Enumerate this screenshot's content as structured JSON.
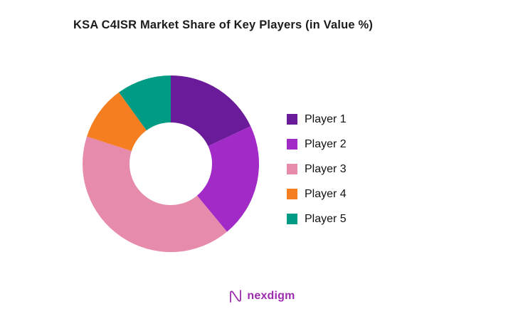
{
  "chart_data": {
    "type": "pie",
    "subtype": "donut",
    "title": "KSA C4ISR Market Share of Key Players (in Value %)",
    "categories": [
      "Player 1",
      "Player 2",
      "Player 3",
      "Player 4",
      "Player 5"
    ],
    "values": [
      18,
      21,
      41,
      10,
      10
    ],
    "colors": [
      "#6A1B9A",
      "#A22BC8",
      "#E78BAC",
      "#F57E20",
      "#009B85"
    ],
    "legend_position": "right",
    "start_angle": 0,
    "direction": "clockwise",
    "inner_radius_ratio": 0.47,
    "grid": "off"
  },
  "legend": {
    "items": [
      {
        "label": "Player 1",
        "color": "#6A1B9A"
      },
      {
        "label": "Player 2",
        "color": "#A22BC8"
      },
      {
        "label": "Player 3",
        "color": "#E78BAC"
      },
      {
        "label": "Player 4",
        "color": "#F57E20"
      },
      {
        "label": "Player 5",
        "color": "#009B85"
      }
    ]
  },
  "footer": {
    "brand": "nexdigm",
    "brand_color": "#9C2BAD"
  }
}
